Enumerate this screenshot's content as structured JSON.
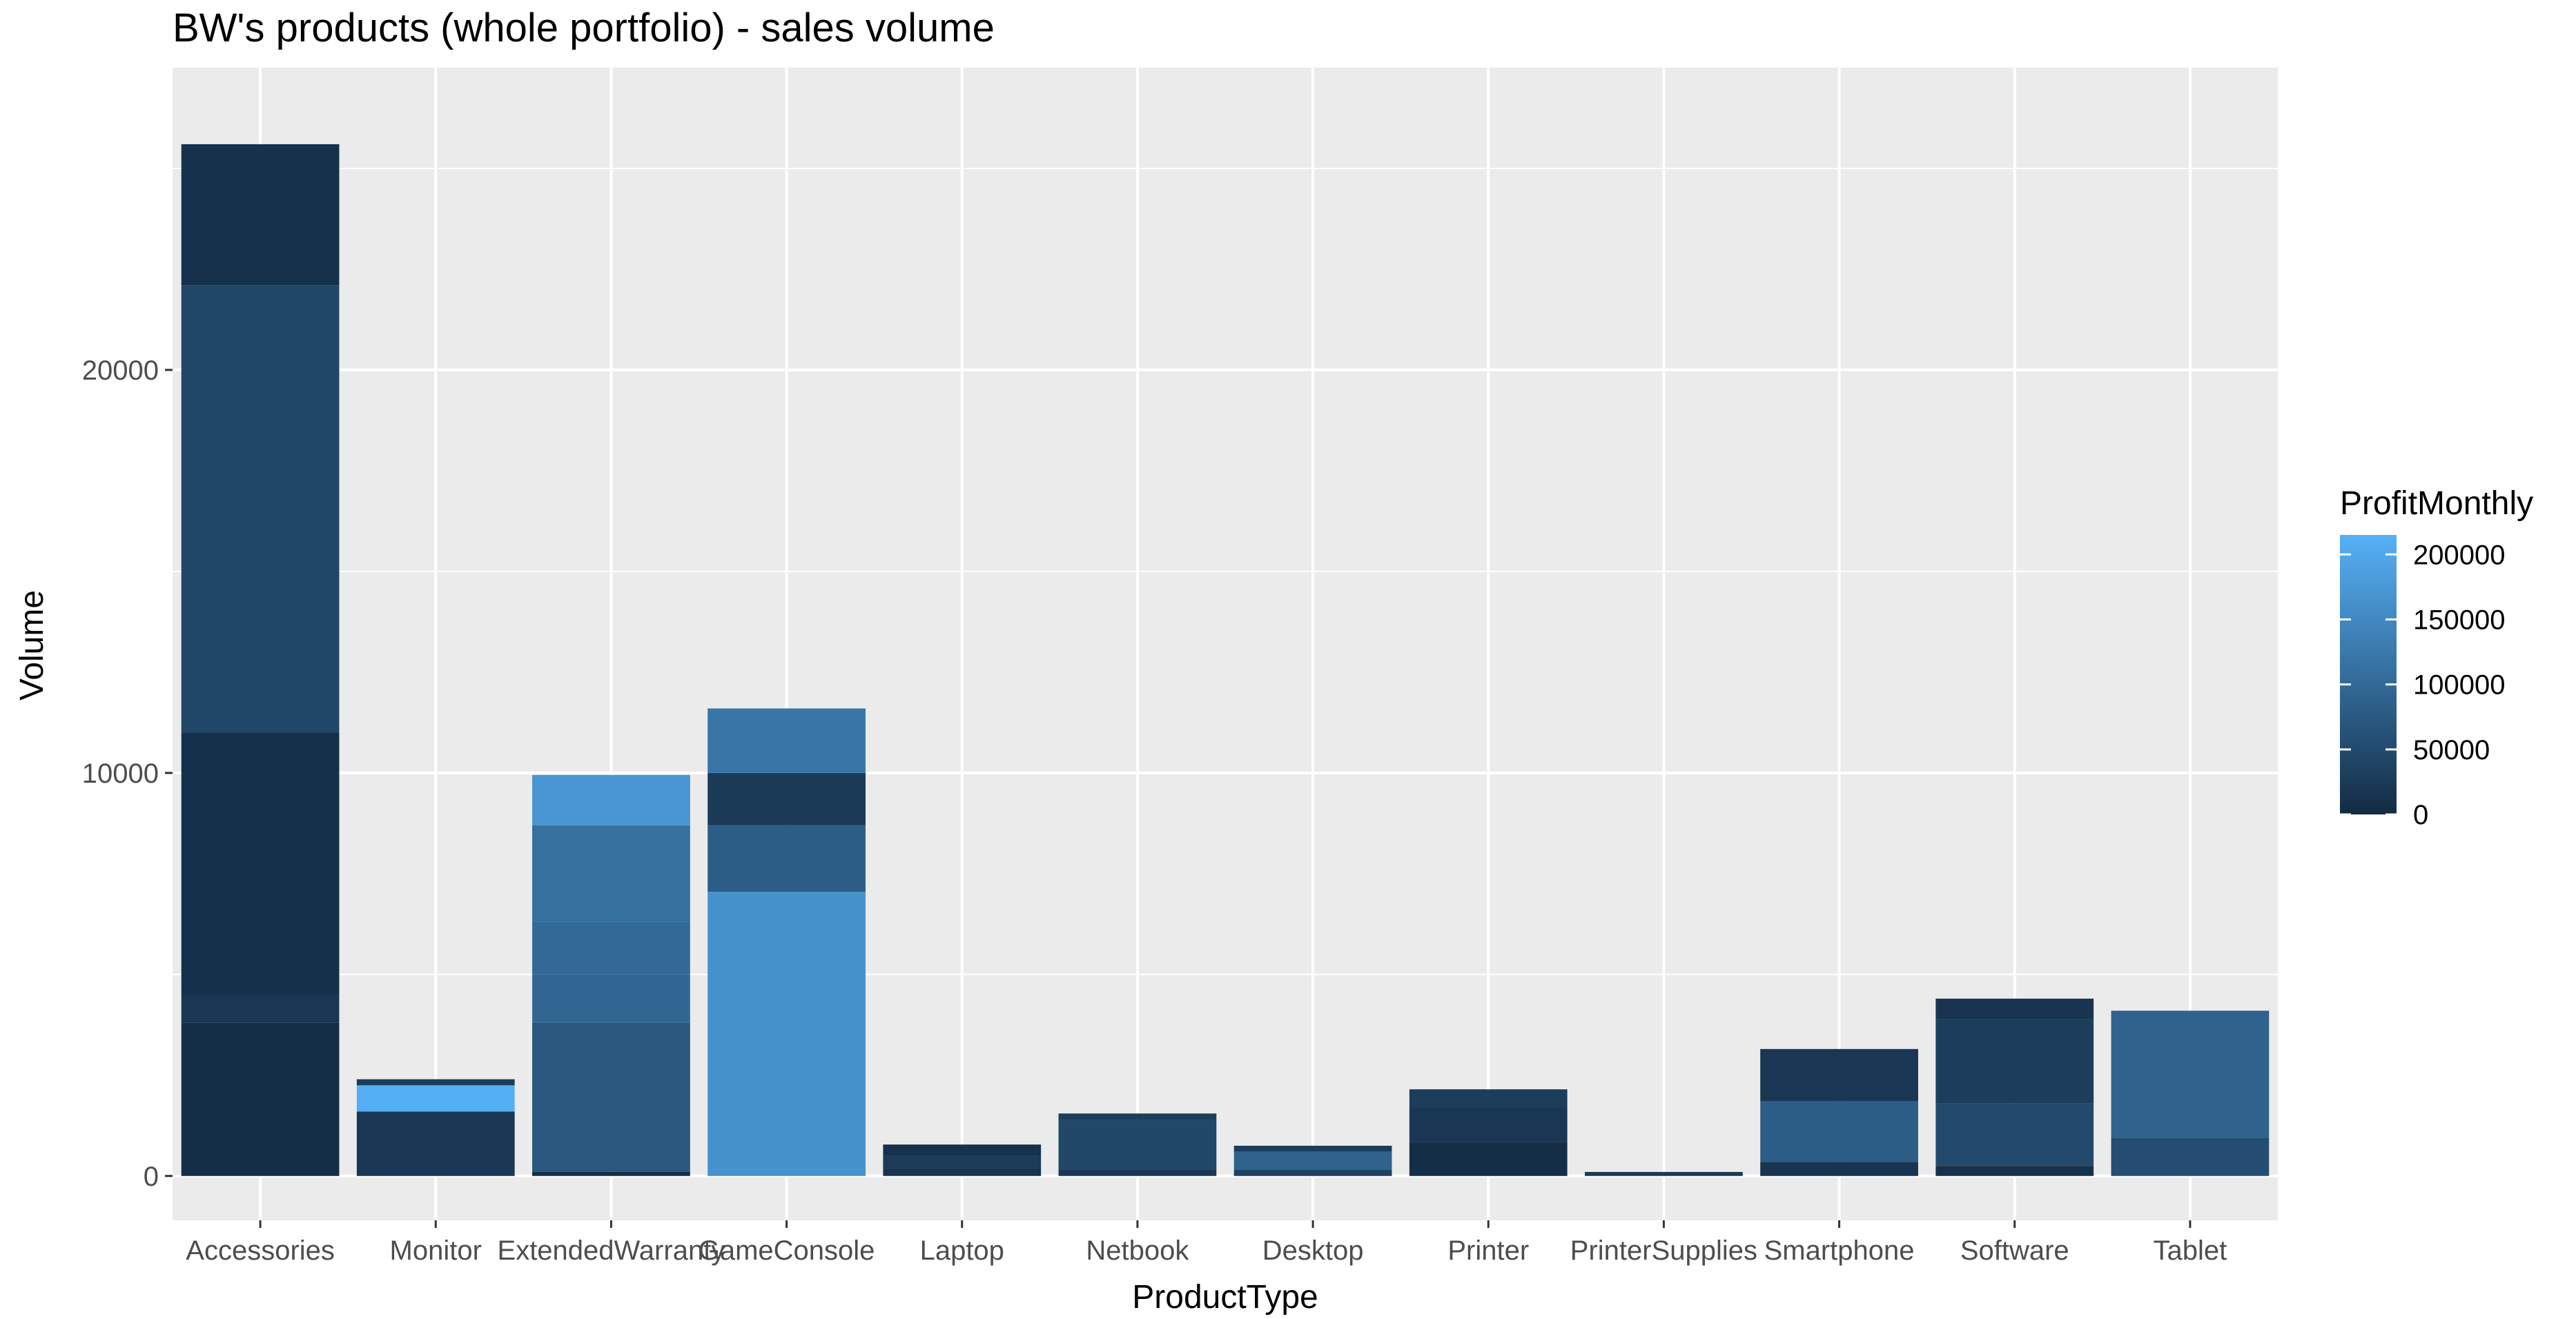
{
  "chart_data": {
    "type": "bar",
    "stacked": true,
    "title": "BW's products (whole portfolio) - sales volume",
    "xlabel": "ProductType",
    "ylabel": "Volume",
    "ylim": [
      -1100,
      27500
    ],
    "yticks": [
      0,
      10000,
      20000
    ],
    "ytick_labels": [
      "0",
      "10000",
      "20000"
    ],
    "grid": true,
    "legend": {
      "title": "ProfitMonthly",
      "placement": "right",
      "type": "colorbar",
      "min": 0,
      "max": 215000,
      "ticks": [
        0,
        50000,
        100000,
        150000,
        200000
      ],
      "tick_labels": [
        "0",
        "50000",
        "100000",
        "150000",
        "200000"
      ],
      "low_color": "#132b43",
      "high_color": "#56b1f7"
    },
    "categories": [
      {
        "label": "Accessories",
        "segments": [
          {
            "volume": 3800,
            "profit": 5000
          },
          {
            "volume": 700,
            "profit": 20000
          },
          {
            "volume": 6500,
            "profit": 8000
          },
          {
            "volume": 11100,
            "profit": 45000
          },
          {
            "volume": 3500,
            "profit": 10000
          }
        ]
      },
      {
        "label": "Monitor",
        "segments": [
          {
            "volume": 1600,
            "profit": 20000
          },
          {
            "volume": 650,
            "profit": 210000
          },
          {
            "volume": 150,
            "profit": 25000
          }
        ]
      },
      {
        "label": "ExtendedWarranty",
        "segments": [
          {
            "volume": 100,
            "profit": 5000
          },
          {
            "volume": 3700,
            "profit": 70000
          },
          {
            "volume": 1200,
            "profit": 95000
          },
          {
            "volume": 1300,
            "profit": 100000
          },
          {
            "volume": 2400,
            "profit": 110000
          },
          {
            "volume": 1250,
            "profit": 170000
          }
        ]
      },
      {
        "label": "GameConsole",
        "segments": [
          {
            "volume": 7050,
            "profit": 165000
          },
          {
            "volume": 1650,
            "profit": 80000
          },
          {
            "volume": 1300,
            "profit": 25000
          },
          {
            "volume": 1600,
            "profit": 120000
          }
        ]
      },
      {
        "label": "Laptop",
        "segments": [
          {
            "volume": 200,
            "profit": 15000
          },
          {
            "volume": 300,
            "profit": 25000
          },
          {
            "volume": 280,
            "profit": 10000
          }
        ]
      },
      {
        "label": "Netbook",
        "segments": [
          {
            "volume": 150,
            "profit": 20000
          },
          {
            "volume": 1250,
            "profit": 45000
          },
          {
            "volume": 150,
            "profit": 30000
          }
        ]
      },
      {
        "label": "Desktop",
        "segments": [
          {
            "volume": 150,
            "profit": 35000
          },
          {
            "volume": 450,
            "profit": 90000
          },
          {
            "volume": 150,
            "profit": 30000
          }
        ]
      },
      {
        "label": "Printer",
        "segments": [
          {
            "volume": 850,
            "profit": 5000
          },
          {
            "volume": 850,
            "profit": 20000
          },
          {
            "volume": 450,
            "profit": 30000
          }
        ]
      },
      {
        "label": "PrinterSupplies",
        "segments": [
          {
            "volume": 100,
            "profit": 25000
          }
        ]
      },
      {
        "label": "Smartphone",
        "segments": [
          {
            "volume": 350,
            "profit": 15000
          },
          {
            "volume": 1500,
            "profit": 80000
          },
          {
            "volume": 1300,
            "profit": 20000
          }
        ]
      },
      {
        "label": "Software",
        "segments": [
          {
            "volume": 250,
            "profit": 10000
          },
          {
            "volume": 1550,
            "profit": 50000
          },
          {
            "volume": 2100,
            "profit": 30000
          },
          {
            "volume": 500,
            "profit": 15000
          }
        ]
      },
      {
        "label": "Tablet",
        "segments": [
          {
            "volume": 950,
            "profit": 55000
          },
          {
            "volume": 3150,
            "profit": 90000
          }
        ]
      }
    ]
  }
}
